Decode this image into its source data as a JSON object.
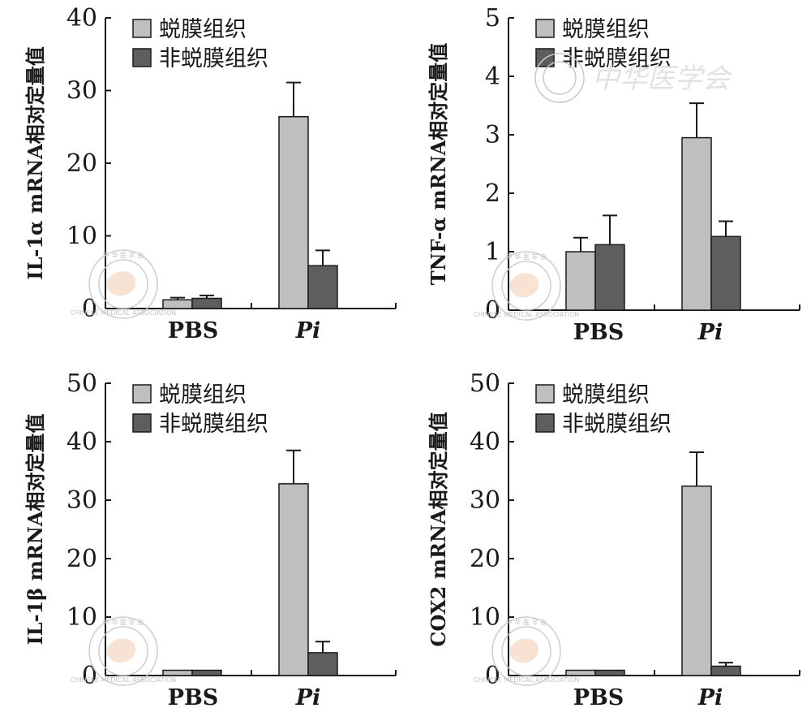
{
  "colors": {
    "tissue": "#bfbfbf",
    "non_tissue": "#5e5e5e",
    "axis": "#1a1a1a"
  },
  "watermark": {
    "seal_text": "中 华 医 学 会",
    "seal_ring_text": "CHINESE MEDICAL ASSOCIATION",
    "banner_text": "中华医学会"
  },
  "chart_data": [
    {
      "type": "bar",
      "ylabel": "IL-1α mRNA相对定量值",
      "ylim": [
        0,
        40
      ],
      "yticks": [
        0,
        10,
        20,
        30,
        40
      ],
      "categories": [
        "PBS",
        "Pi"
      ],
      "legend": [
        "蜕膜组织",
        "非蜕膜组织"
      ],
      "series": [
        {
          "name": "蜕膜组织",
          "values": [
            1.2,
            26.4
          ],
          "errors": [
            0.3,
            4.7
          ]
        },
        {
          "name": "非蜕膜组织",
          "values": [
            1.4,
            5.9
          ],
          "errors": [
            0.4,
            2.1
          ]
        }
      ]
    },
    {
      "type": "bar",
      "ylabel": "TNF-α mRNA相对定量值",
      "ylim": [
        0,
        5
      ],
      "yticks": [
        0,
        1,
        2,
        3,
        4,
        5
      ],
      "categories": [
        "PBS",
        "Pi"
      ],
      "legend": [
        "蜕膜组织",
        "非蜕膜组织"
      ],
      "series": [
        {
          "name": "蜕膜组织",
          "values": [
            1.0,
            2.95
          ],
          "errors": [
            0.24,
            0.59
          ]
        },
        {
          "name": "非蜕膜组织",
          "values": [
            1.12,
            1.26
          ],
          "errors": [
            0.5,
            0.26
          ]
        }
      ]
    },
    {
      "type": "bar",
      "ylabel": "IL-1β mRNA相对定量值",
      "ylim": [
        0,
        50
      ],
      "yticks": [
        0,
        10,
        20,
        30,
        40,
        50
      ],
      "categories": [
        "PBS",
        "Pi"
      ],
      "legend": [
        "蜕膜组织",
        "非蜕膜组织"
      ],
      "series": [
        {
          "name": "蜕膜组织",
          "values": [
            0.9,
            32.8
          ],
          "errors": [
            0,
            5.7
          ]
        },
        {
          "name": "非蜕膜组织",
          "values": [
            0.9,
            3.9
          ],
          "errors": [
            0,
            1.9
          ]
        }
      ]
    },
    {
      "type": "bar",
      "ylabel": "COX2 mRNA相对定量值",
      "ylim": [
        0,
        50
      ],
      "yticks": [
        0,
        10,
        20,
        30,
        40,
        50
      ],
      "categories": [
        "PBS",
        "Pi"
      ],
      "legend": [
        "蜕膜组织",
        "非蜕膜组织"
      ],
      "series": [
        {
          "name": "蜕膜组织",
          "values": [
            0.9,
            32.4
          ],
          "errors": [
            0,
            5.8
          ]
        },
        {
          "name": "非蜕膜组织",
          "values": [
            0.9,
            1.6
          ],
          "errors": [
            0,
            0.6
          ]
        }
      ]
    }
  ]
}
